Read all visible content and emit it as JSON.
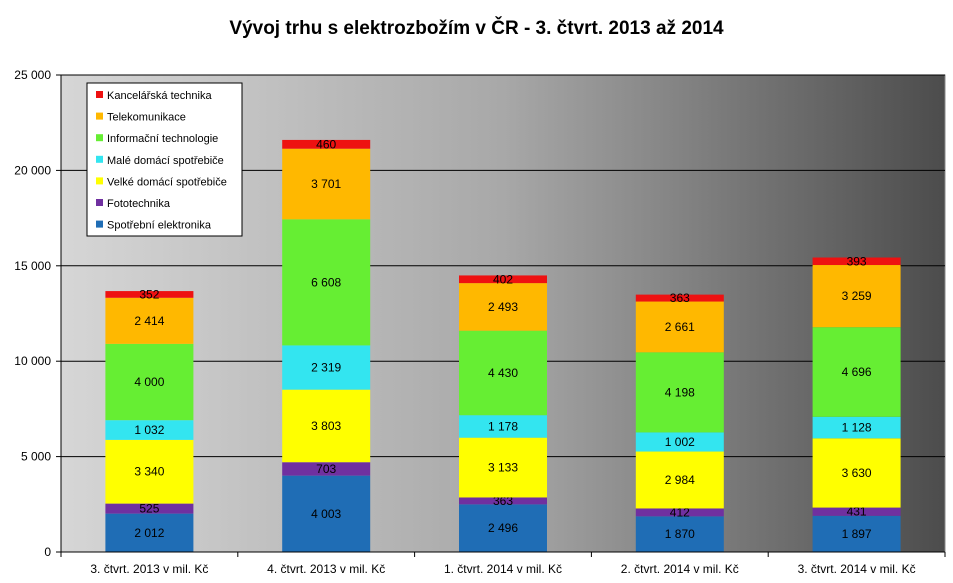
{
  "chart_data": {
    "type": "bar",
    "stacked": true,
    "title": "Vývoj trhu s elektrozbožím v ČR - 3. čtvrt. 2013 až 2014",
    "xlabel": "",
    "ylabel": "",
    "ylim": [
      0,
      25000
    ],
    "yticks": [
      0,
      5000,
      10000,
      15000,
      20000,
      25000
    ],
    "ytick_labels": [
      "0",
      "5 000",
      "10 000",
      "15 000",
      "20 000",
      "25 000"
    ],
    "grid": true,
    "legend_position": "top-left",
    "categories": [
      "3. čtvrt. 2013 v mil. Kč",
      "4. čtvrt. 2013 v mil. Kč",
      "1. čtvrt. 2014 v mil. Kč",
      "2. čtvrt. 2014 v mil. Kč",
      "3. čtvrt. 2014 v mil. Kč"
    ],
    "series": [
      {
        "name": "Spotřební elektronika",
        "color": "#1f6db5",
        "values": [
          2012,
          4003,
          2496,
          1870,
          1897
        ],
        "labels": [
          "2 012",
          "4 003",
          "2 496",
          "1 870",
          "1 897"
        ]
      },
      {
        "name": "Fototechnika",
        "color": "#7030a0",
        "values": [
          525,
          703,
          363,
          412,
          431
        ],
        "labels": [
          "525",
          "703",
          "363",
          "412",
          "431"
        ]
      },
      {
        "name": "Velké domácí spotřebiče",
        "color": "#ffff00",
        "values": [
          3340,
          3803,
          3133,
          2984,
          3630
        ],
        "labels": [
          "3 340",
          "3 803",
          "3 133",
          "2 984",
          "3 630"
        ]
      },
      {
        "name": "Malé domácí spotřebiče",
        "color": "#33e5f0",
        "values": [
          1032,
          2319,
          1178,
          1002,
          1128
        ],
        "labels": [
          "1 032",
          "2 319",
          "1 178",
          "1 002",
          "1 128"
        ]
      },
      {
        "name": "Informační technologie",
        "color": "#66ee33",
        "values": [
          4000,
          6608,
          4430,
          4198,
          4696
        ],
        "labels": [
          "4 000",
          "6 608",
          "4 430",
          "4 198",
          "4 696"
        ]
      },
      {
        "name": "Telekomunikace",
        "color": "#ffb800",
        "values": [
          2414,
          3701,
          2493,
          2661,
          3259
        ],
        "labels": [
          "2 414",
          "3 701",
          "2 493",
          "2 661",
          "3 259"
        ]
      },
      {
        "name": "Kancelářská technika",
        "color": "#ee1111",
        "values": [
          352,
          460,
          402,
          363,
          393
        ],
        "labels": [
          "352",
          "460",
          "402",
          "363",
          "393"
        ]
      }
    ]
  }
}
